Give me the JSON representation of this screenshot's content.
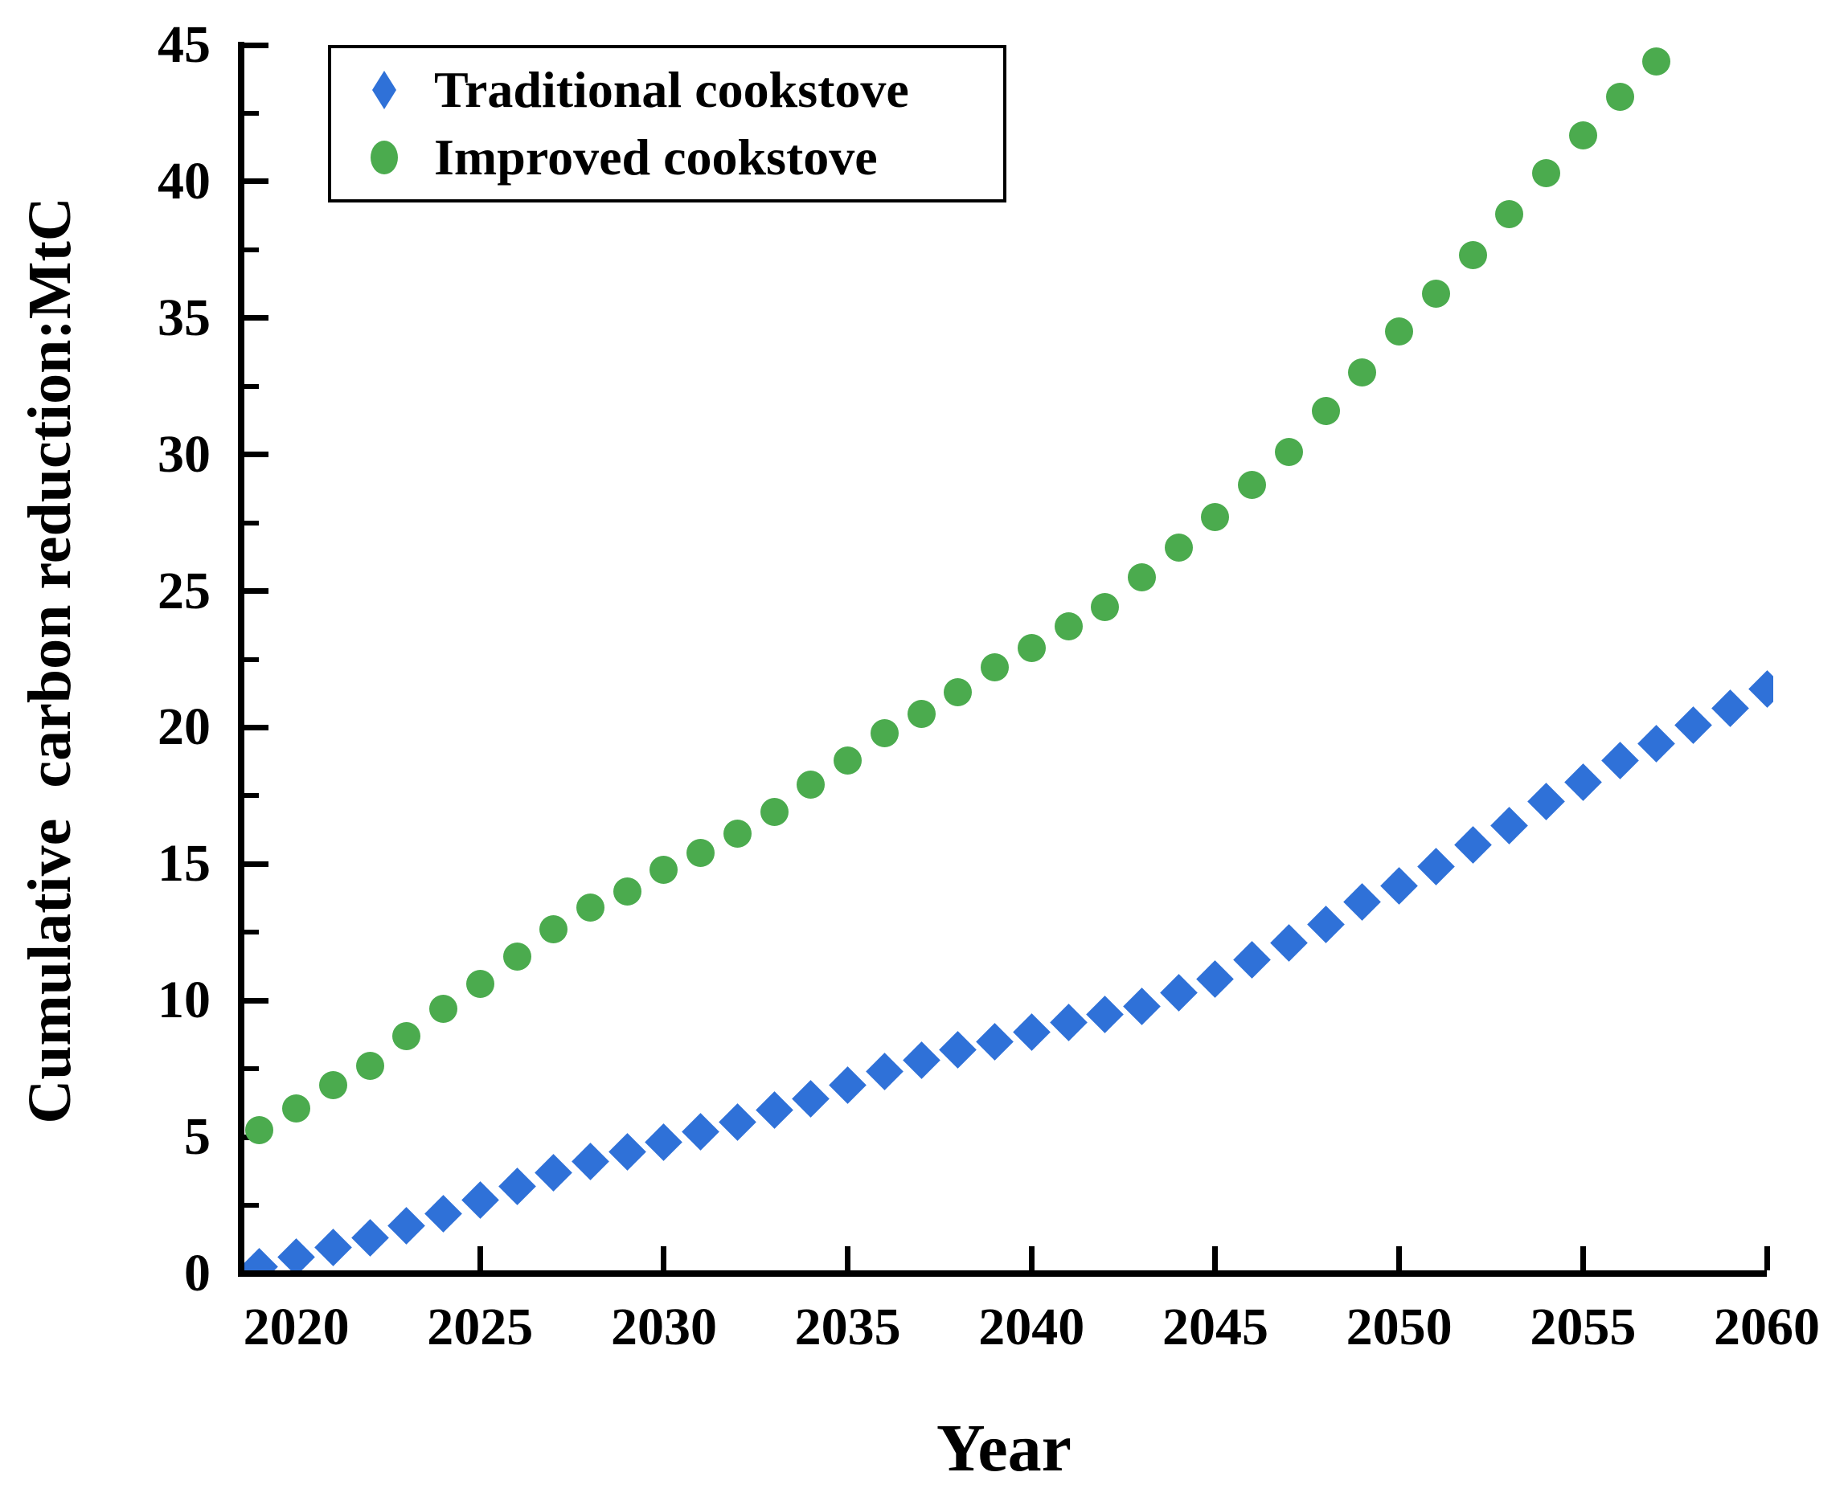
{
  "chart_data": {
    "type": "scatter",
    "title": "",
    "xlabel": "Year",
    "ylabel": "Cumulative  carbon reduction:MtC",
    "xlim": [
      2018.5,
      2060
    ],
    "ylim": [
      0,
      45
    ],
    "x_major_ticks": [
      2020,
      2025,
      2030,
      2035,
      2040,
      2045,
      2050,
      2055,
      2060
    ],
    "y_major_ticks": [
      0,
      5,
      10,
      15,
      20,
      25,
      30,
      35,
      40,
      45
    ],
    "y_minor_ticks": [
      2.5,
      7.5,
      12.5,
      17.5,
      22.5,
      27.5,
      32.5,
      37.5,
      42.5
    ],
    "grid": false,
    "legend_position": "upper-left",
    "background_color": "#ffffff",
    "axis_color": "#000000",
    "series": [
      {
        "name": "Traditional cookstove",
        "marker": "diamond",
        "color": "#2F71D8",
        "x": [
          2019,
          2020,
          2021,
          2022,
          2023,
          2024,
          2025,
          2026,
          2027,
          2028,
          2029,
          2030,
          2031,
          2032,
          2033,
          2034,
          2035,
          2036,
          2037,
          2038,
          2039,
          2040,
          2041,
          2042,
          2043,
          2044,
          2045,
          2046,
          2047,
          2048,
          2049,
          2050,
          2051,
          2052,
          2053,
          2054,
          2055,
          2056,
          2057,
          2058,
          2059,
          2060
        ],
        "y": [
          0.25,
          0.6,
          0.95,
          1.3,
          1.75,
          2.2,
          2.7,
          3.2,
          3.7,
          4.1,
          4.45,
          4.8,
          5.2,
          5.55,
          6.0,
          6.4,
          6.9,
          7.4,
          7.8,
          8.2,
          8.5,
          8.85,
          9.2,
          9.5,
          9.8,
          10.3,
          10.8,
          11.5,
          12.1,
          12.8,
          13.6,
          14.2,
          14.9,
          15.7,
          16.4,
          17.3,
          18.0,
          18.8,
          19.4,
          20.1,
          20.7,
          21.4
        ]
      },
      {
        "name": "Improved cookstove",
        "marker": "circle",
        "color": "#4BAB4E",
        "x": [
          2019,
          2020,
          2021,
          2022,
          2023,
          2024,
          2025,
          2026,
          2027,
          2028,
          2029,
          2030,
          2031,
          2032,
          2033,
          2034,
          2035,
          2036,
          2037,
          2038,
          2039,
          2040,
          2041,
          2042,
          2043,
          2044,
          2045,
          2046,
          2047,
          2048,
          2049,
          2050,
          2051,
          2052,
          2053,
          2054,
          2055,
          2056,
          2057
        ],
        "y": [
          5.25,
          6.05,
          6.9,
          7.6,
          8.7,
          9.7,
          10.6,
          11.6,
          12.6,
          13.4,
          14.0,
          14.8,
          15.4,
          16.1,
          16.9,
          17.9,
          18.8,
          19.8,
          20.5,
          21.3,
          22.2,
          22.9,
          23.7,
          24.4,
          25.5,
          26.6,
          27.7,
          28.9,
          30.1,
          31.6,
          33.0,
          34.5,
          35.9,
          37.3,
          38.8,
          40.3,
          41.7,
          43.1,
          44.4
        ]
      }
    ]
  }
}
